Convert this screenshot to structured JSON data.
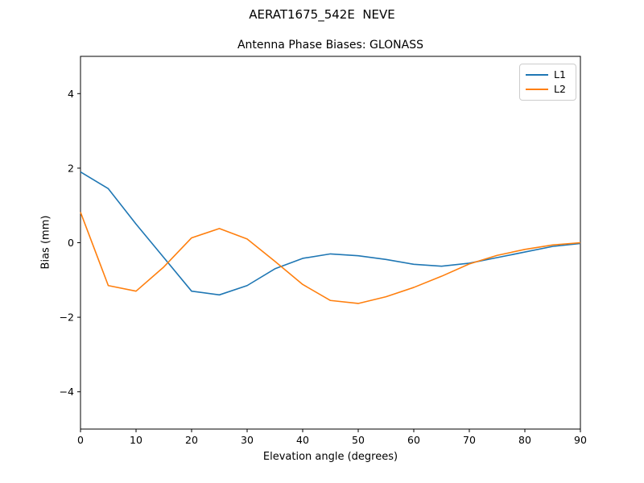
{
  "chart_data": {
    "type": "line",
    "suptitle": "AERAT1675_542E  NEVE",
    "title": "Antenna Phase Biases: GLONASS",
    "xlabel": "Elevation angle (degrees)",
    "ylabel": "Bias (mm)",
    "xlim": [
      0,
      90
    ],
    "ylim": [
      -5,
      5
    ],
    "x_ticks": [
      0,
      10,
      20,
      30,
      40,
      50,
      60,
      70,
      80,
      90
    ],
    "y_ticks": [
      -4,
      -2,
      0,
      2,
      4
    ],
    "grid": false,
    "legend_position": "upper right",
    "x": [
      0,
      5,
      10,
      15,
      20,
      25,
      30,
      35,
      40,
      45,
      50,
      55,
      60,
      65,
      70,
      75,
      80,
      85,
      90
    ],
    "series": [
      {
        "name": "L1",
        "color": "#1f77b4",
        "values": [
          1.9,
          1.45,
          0.5,
          -0.4,
          -1.3,
          -1.4,
          -1.15,
          -0.7,
          -0.42,
          -0.3,
          -0.35,
          -0.45,
          -0.58,
          -0.63,
          -0.55,
          -0.4,
          -0.25,
          -0.1,
          -0.02
        ]
      },
      {
        "name": "L2",
        "color": "#ff7f0e",
        "values": [
          0.82,
          -1.15,
          -1.3,
          -0.65,
          0.13,
          0.38,
          0.1,
          -0.5,
          -1.12,
          -1.55,
          -1.63,
          -1.45,
          -1.2,
          -0.9,
          -0.57,
          -0.34,
          -0.18,
          -0.06,
          0.0
        ]
      }
    ],
    "axis_color": "#000000",
    "background_color": "#ffffff"
  }
}
